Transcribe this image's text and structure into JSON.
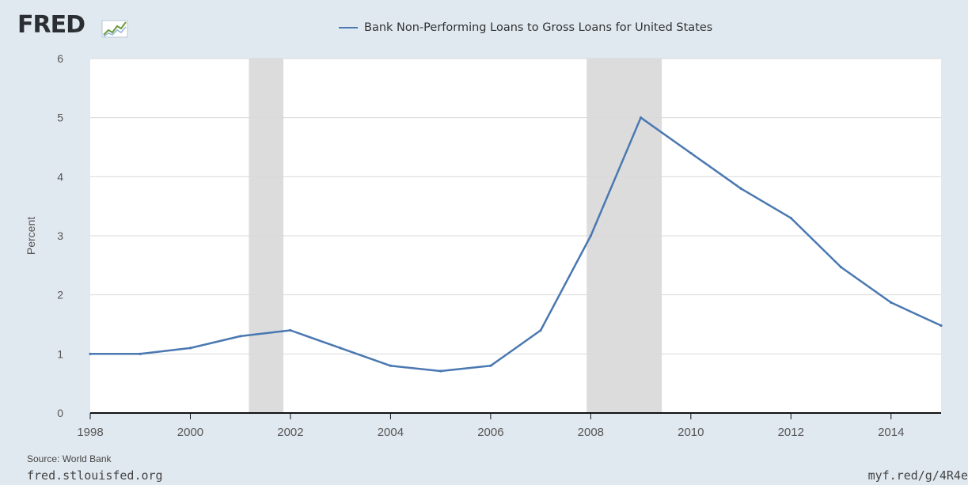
{
  "logo": {
    "text": "FRED"
  },
  "legend": {
    "label": "Bank Non-Performing Loans to Gross Loans for United States"
  },
  "colors": {
    "series": "#4a78b1",
    "recession": "#dcdcdc",
    "background": "#e1e9f0",
    "plot_bg": "#ffffff",
    "grid": "#d9d9d9",
    "axis": "#111111",
    "tick_text": "#555555"
  },
  "source": "Source: World Bank",
  "footer": {
    "left": "fred.stlouisfed.org",
    "right": "myf.red/g/4R4e"
  },
  "chart_data": {
    "type": "line",
    "title": "",
    "xlabel": "",
    "ylabel": "Percent",
    "xlim": [
      1998,
      2015
    ],
    "ylim": [
      0,
      6
    ],
    "yticks": [
      0,
      1,
      2,
      3,
      4,
      5,
      6
    ],
    "xticks": [
      1998,
      2000,
      2002,
      2004,
      2006,
      2008,
      2010,
      2012,
      2014
    ],
    "grid": true,
    "legend_position": "top-center",
    "recessions": [
      [
        2001.17,
        2001.86
      ],
      [
        2007.92,
        2009.42
      ]
    ],
    "series": [
      {
        "name": "Bank Non-Performing Loans to Gross Loans for United States",
        "x": [
          1998,
          1999,
          2000,
          2001,
          2002,
          2003,
          2004,
          2005,
          2006,
          2007,
          2008,
          2009,
          2010,
          2011,
          2012,
          2013,
          2014,
          2015
        ],
        "values": [
          1.0,
          1.0,
          1.1,
          1.3,
          1.4,
          1.1,
          0.8,
          0.71,
          0.8,
          1.4,
          3.0,
          5.0,
          4.4,
          3.8,
          3.3,
          2.47,
          1.87,
          1.48
        ]
      }
    ]
  }
}
